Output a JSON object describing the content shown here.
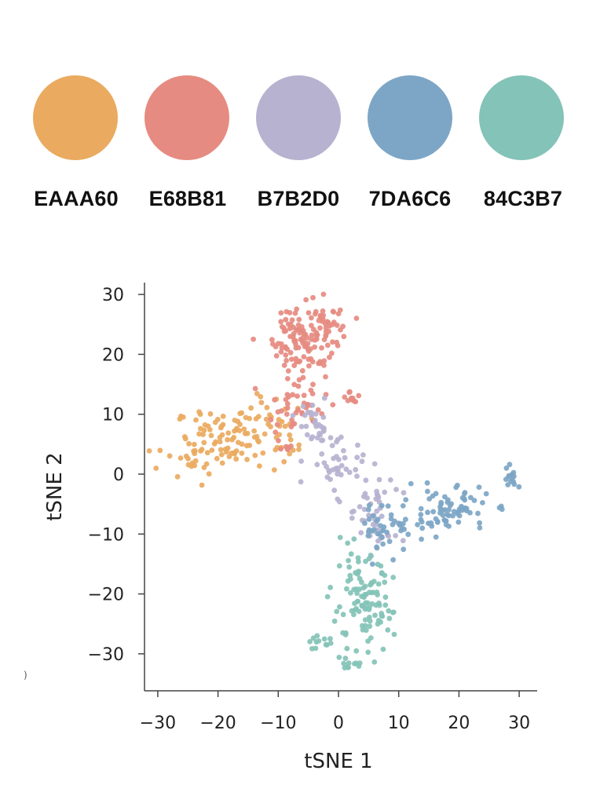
{
  "palette": [
    {
      "hex": "EAAA60",
      "color": "#EAAA60"
    },
    {
      "hex": "E68B81",
      "color": "#E68B81"
    },
    {
      "hex": "B7B2D0",
      "color": "#B7B2D0"
    },
    {
      "hex": "7DA6C6",
      "color": "#7DA6C6"
    },
    {
      "hex": "84C3B7",
      "color": "#84C3B7"
    }
  ],
  "stray_mark": ")",
  "chart_data": {
    "type": "scatter",
    "title": "",
    "xlabel": "tSNE 1",
    "ylabel": "tSNE 2",
    "xlim": [
      -32,
      33
    ],
    "ylim": [
      -36,
      32
    ],
    "xticks": [
      -30,
      -20,
      -10,
      0,
      10,
      20,
      30
    ],
    "yticks": [
      30,
      20,
      10,
      0,
      -10,
      -20,
      -30
    ],
    "grid": false,
    "legend": "none",
    "series": [
      {
        "color": "#EAAA60",
        "clusters": [
          {
            "x": -18,
            "y": 6,
            "sx": 4.5,
            "sy": 2.5,
            "n": 80
          },
          {
            "x": -25,
            "y": 2,
            "sx": 2.5,
            "sy": 2.0,
            "n": 25
          },
          {
            "x": -10,
            "y": 8,
            "sx": 3.0,
            "sy": 2.5,
            "n": 30
          }
        ]
      },
      {
        "color": "#E68B81",
        "clusters": [
          {
            "x": -6,
            "y": 23,
            "sx": 2.5,
            "sy": 3.5,
            "n": 110
          },
          {
            "x": -2,
            "y": 24,
            "sx": 2.5,
            "sy": 2.0,
            "n": 30
          },
          {
            "x": -7,
            "y": 11,
            "sx": 2.5,
            "sy": 2.0,
            "n": 40
          },
          {
            "x": 2,
            "y": 13,
            "sx": 0.6,
            "sy": 0.5,
            "n": 10
          },
          {
            "x": -9,
            "y": 4.5,
            "sx": 0.8,
            "sy": 0.4,
            "n": 8
          }
        ]
      },
      {
        "color": "#B7B2D0",
        "clusters": [
          {
            "x": -4,
            "y": 8,
            "sx": 1.5,
            "sy": 2.0,
            "n": 30
          },
          {
            "x": 0,
            "y": 2,
            "sx": 2.5,
            "sy": 2.5,
            "n": 40
          },
          {
            "x": 5,
            "y": -6,
            "sx": 2.0,
            "sy": 3.0,
            "n": 35
          },
          {
            "x": 8,
            "y": -10,
            "sx": 2.0,
            "sy": 1.0,
            "n": 10
          }
        ]
      },
      {
        "color": "#7DA6C6",
        "clusters": [
          {
            "x": 18,
            "y": -6,
            "sx": 3.5,
            "sy": 2.0,
            "n": 80
          },
          {
            "x": 8,
            "y": -9,
            "sx": 2.0,
            "sy": 2.0,
            "n": 40
          },
          {
            "x": 29,
            "y": -0.5,
            "sx": 0.8,
            "sy": 1.0,
            "n": 15
          }
        ]
      },
      {
        "color": "#84C3B7",
        "clusters": [
          {
            "x": 4,
            "y": -22,
            "sx": 2.5,
            "sy": 4.0,
            "n": 110
          },
          {
            "x": -2,
            "y": -28,
            "sx": 2.0,
            "sy": 1.0,
            "n": 15
          },
          {
            "x": 1,
            "y": -32,
            "sx": 1.5,
            "sy": 0.6,
            "n": 8
          }
        ]
      }
    ]
  }
}
